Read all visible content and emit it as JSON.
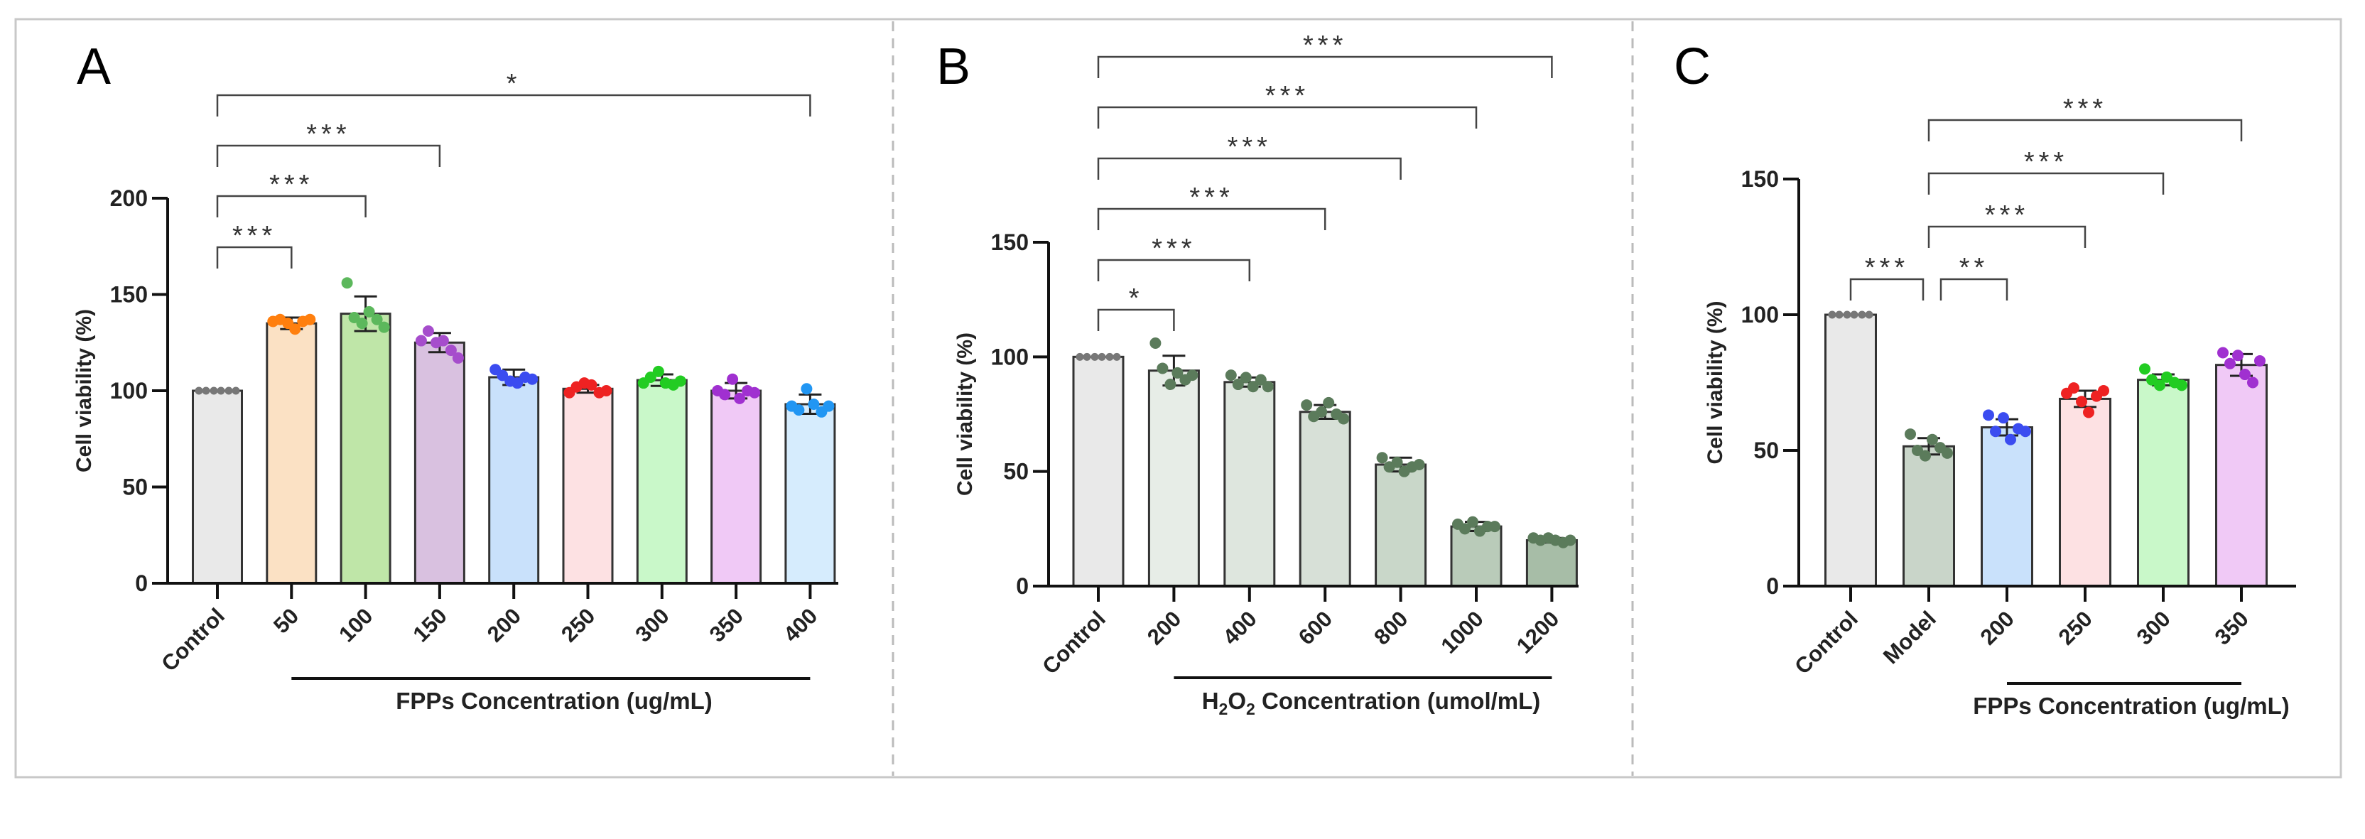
{
  "chart_data": [
    {
      "type": "bar",
      "panel_label": "A",
      "ylabel": "Cell viability (%)",
      "xlabel": "FPPs Concentration (ug/mL)",
      "ylim": [
        0,
        200
      ],
      "yticks": [
        "0",
        "50",
        "100",
        "150",
        "200"
      ],
      "categories": [
        "Control",
        "50",
        "100",
        "150",
        "200",
        "250",
        "300",
        "350",
        "400"
      ],
      "means": [
        100,
        135,
        140,
        125,
        107,
        101,
        105.5,
        100,
        93
      ],
      "sd": [
        0,
        3,
        9,
        5,
        4,
        2,
        3,
        4,
        5
      ],
      "points": [
        [
          100,
          100,
          100,
          100,
          100,
          100
        ],
        [
          136,
          137,
          135,
          132,
          136,
          137
        ],
        [
          156,
          138,
          135,
          141,
          137,
          133
        ],
        [
          126,
          131,
          125,
          126,
          121,
          117
        ],
        [
          111,
          108,
          105,
          104,
          107,
          106
        ],
        [
          99,
          102,
          104,
          103,
          99,
          100
        ],
        [
          104,
          107,
          110,
          104,
          103,
          105
        ],
        [
          100,
          98,
          106,
          96,
          100,
          99
        ],
        [
          92,
          90,
          101,
          93,
          89,
          92
        ]
      ],
      "bar_colors": [
        "#e9e9e9",
        "#fbe1c4",
        "#bfe6a8",
        "#d9c1e0",
        "#c9e1fb",
        "#fde1e3",
        "#c9f8c9",
        "#f0c9f6",
        "#d6ecfd"
      ],
      "dot_colors": [
        "#777777",
        "#ff7f0e",
        "#5cb85c",
        "#a64dcc",
        "#3b4cf0",
        "#ee2222",
        "#22cc22",
        "#a030d0",
        "#2196f3"
      ],
      "brackets": [
        {
          "from": "Control",
          "to": "50",
          "label": "***"
        },
        {
          "from": "Control",
          "to": "100",
          "label": "***"
        },
        {
          "from": "Control",
          "to": "150",
          "label": "***"
        },
        {
          "from": "Control",
          "to": "400",
          "label": "*"
        }
      ],
      "group_line": {
        "from": "50",
        "to": "400"
      }
    },
    {
      "type": "bar",
      "panel_label": "B",
      "ylabel": "Cell viability (%)",
      "xlabel_main": "H",
      "xlabel_sub1": "2",
      "xlabel_mid": "O",
      "xlabel_sub2": "2",
      "xlabel_rest": " Concentration (umol/mL)",
      "ylim": [
        0,
        150
      ],
      "yticks": [
        "0",
        "50",
        "100",
        "150"
      ],
      "categories": [
        "Control",
        "200",
        "400",
        "600",
        "800",
        "1000",
        "1200"
      ],
      "means": [
        100,
        94,
        89,
        76,
        53,
        26,
        20
      ],
      "sd": [
        0,
        6.5,
        2,
        3,
        3,
        2,
        1
      ],
      "points": [
        [
          100,
          100,
          100,
          100,
          100,
          100
        ],
        [
          106,
          95,
          88,
          93,
          90,
          92
        ],
        [
          92,
          88,
          91,
          87,
          90,
          87
        ],
        [
          79,
          74,
          76,
          80,
          75,
          73
        ],
        [
          56,
          52,
          54,
          50,
          52,
          53
        ],
        [
          27,
          25,
          28,
          24,
          26,
          26
        ],
        [
          21,
          20,
          21,
          20,
          19,
          20
        ]
      ],
      "bar_colors": [
        "#e9e9e9",
        "#e7ede7",
        "#dee6de",
        "#d7e0d7",
        "#c9d7c9",
        "#b9cbb9",
        "#a7bda7"
      ],
      "dot_colors": [
        "#777777",
        "#5b7b5b",
        "#5b7b5b",
        "#5b7b5b",
        "#5b7b5b",
        "#5b7b5b",
        "#5b7b5b"
      ],
      "brackets": [
        {
          "from": "Control",
          "to": "200",
          "label": "*"
        },
        {
          "from": "Control",
          "to": "400",
          "label": "***"
        },
        {
          "from": "Control",
          "to": "600",
          "label": "***"
        },
        {
          "from": "Control",
          "to": "800",
          "label": "***"
        },
        {
          "from": "Control",
          "to": "1000",
          "label": "***"
        },
        {
          "from": "Control",
          "to": "1200",
          "label": "***"
        }
      ],
      "group_line": {
        "from": "200",
        "to": "1200"
      }
    },
    {
      "type": "bar",
      "panel_label": "C",
      "ylabel": "Cell viability (%)",
      "xlabel": "FPPs Concentration (ug/mL)",
      "ylim": [
        0,
        150
      ],
      "yticks": [
        "0",
        "50",
        "100",
        "150"
      ],
      "categories": [
        "Control",
        "Model",
        "200",
        "250",
        "300",
        "350"
      ],
      "means": [
        100,
        51.5,
        58.5,
        69,
        76,
        81.5
      ],
      "sd": [
        0,
        3,
        3,
        3,
        2,
        4
      ],
      "points": [
        [
          100,
          100,
          100,
          100,
          100,
          100
        ],
        [
          56,
          50,
          48,
          54,
          51,
          49
        ],
        [
          63,
          57,
          62,
          54,
          58,
          57
        ],
        [
          71,
          73,
          68,
          64,
          70,
          72
        ],
        [
          80,
          76,
          74,
          77,
          75,
          74
        ],
        [
          86,
          82,
          85,
          78,
          75,
          83
        ]
      ],
      "bar_colors": [
        "#e9e9e9",
        "#c9d5c9",
        "#c9e1fb",
        "#fde1e3",
        "#c9f8c9",
        "#f0c9f6"
      ],
      "dot_colors": [
        "#777777",
        "#5b7b5b",
        "#3b4cf0",
        "#ee2222",
        "#22cc22",
        "#a030d0"
      ],
      "brackets": [
        {
          "from": "Control",
          "to": "Model",
          "label": "***"
        },
        {
          "from": "Model",
          "to": "200",
          "label": "**"
        },
        {
          "from": "Model",
          "to": "250",
          "label": "***"
        },
        {
          "from": "Model",
          "to": "300",
          "label": "***"
        },
        {
          "from": "Model",
          "to": "350",
          "label": "***"
        }
      ],
      "group_line": {
        "from": "200",
        "to": "350"
      }
    }
  ]
}
